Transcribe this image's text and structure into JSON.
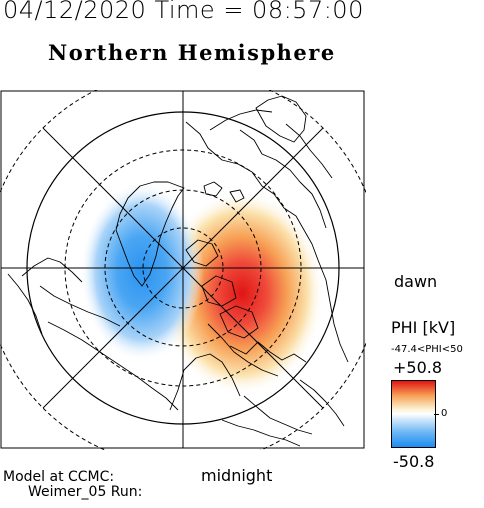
{
  "header": {
    "datetime": "04/12/2020 Time = 08:57:00",
    "hemisphere": "Northern Hemisphere"
  },
  "map": {
    "dawn_label": "dawn",
    "midnight_label": "midnight",
    "colors": {
      "positive": "#e01515",
      "negative": "#1c8cf0",
      "neutral": "#ffffff",
      "lines": "#000000"
    }
  },
  "colorbar": {
    "title": "PHI [kV]",
    "range_text": "-47.4<PHI<50",
    "max_label": "+50.8",
    "zero_label": "0",
    "min_label": "-50.8"
  },
  "model": {
    "line1": "Model at CCMC:",
    "line2": "Weimer_05 Run:"
  }
}
